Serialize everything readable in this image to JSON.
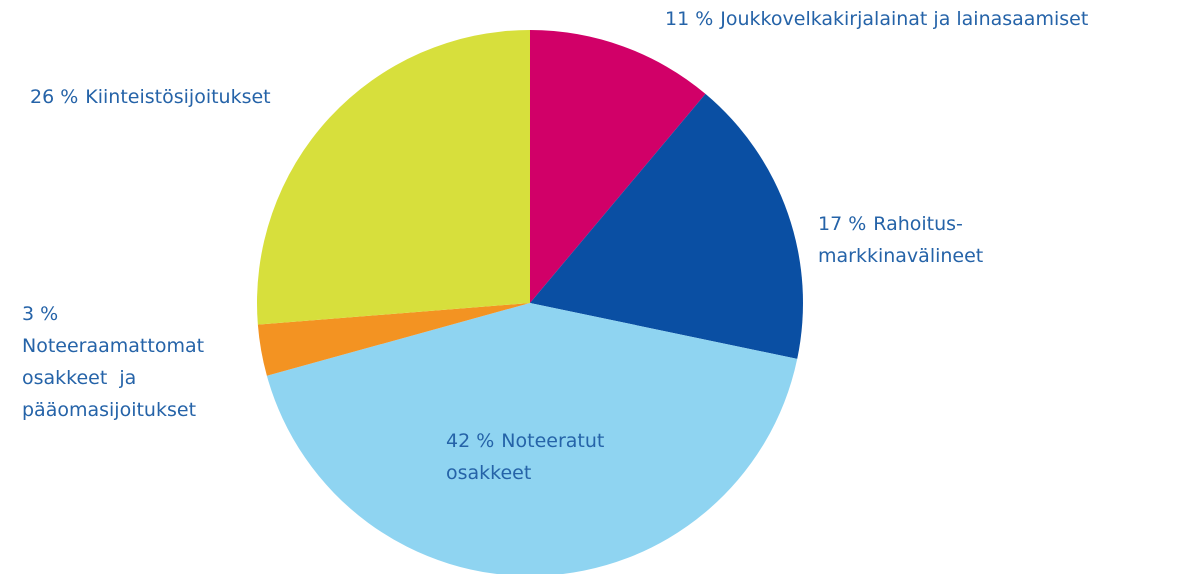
{
  "chart_data": {
    "type": "pie",
    "categories": [
      [
        "Joukkovelkakirjalainat ja lainasaamiset"
      ],
      [
        "Rahoitus-",
        "markkinavälineet"
      ],
      [
        "Noteeratut",
        "osakkeet"
      ],
      [
        "Noteeraamattomat",
        "osakkeet  ja",
        "pääomasijoitukset"
      ],
      [
        "Kiinteistösijoitukset"
      ]
    ],
    "values": [
      11,
      17,
      42,
      3,
      26
    ],
    "value_labels": [
      "11 %",
      "17 %",
      "42 %",
      "3 %",
      "26 %"
    ],
    "colors": [
      "#d10068",
      "#0a4fa3",
      "#8fd4f1",
      "#f39322",
      "#d7df3c"
    ]
  }
}
